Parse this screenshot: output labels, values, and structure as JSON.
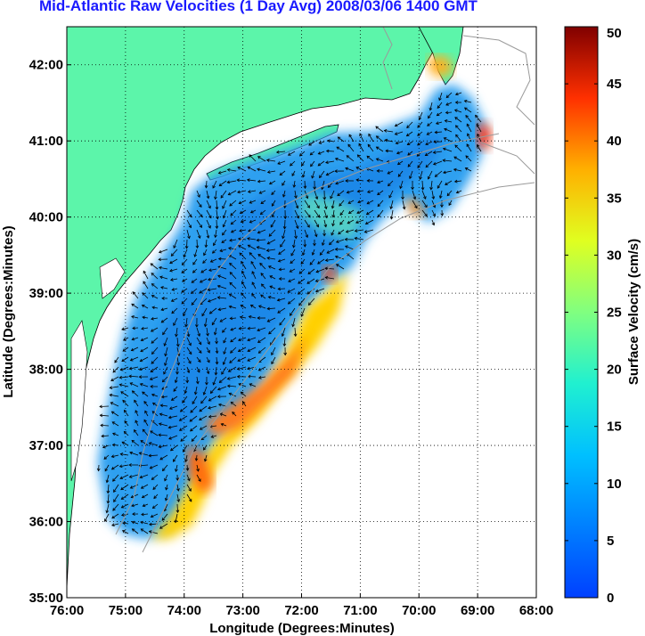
{
  "title": "Mid-Atlantic Raw Velocities (1 Day Avg) 2008/03/06 1400 GMT",
  "map": {
    "xlabel": "Longitude (Degrees:Minutes)",
    "ylabel": "Latitude (Degrees:Minutes)",
    "lon_range": [
      -76,
      -68
    ],
    "lat_range": [
      35,
      42.5
    ],
    "lon_ticks": [
      {
        "value": -76,
        "label": "76:00"
      },
      {
        "value": -75,
        "label": "75:00"
      },
      {
        "value": -74,
        "label": "74:00"
      },
      {
        "value": -73,
        "label": "73:00"
      },
      {
        "value": -72,
        "label": "72:00"
      },
      {
        "value": -71,
        "label": "71:00"
      },
      {
        "value": -70,
        "label": "70:00"
      },
      {
        "value": -69,
        "label": "69:00"
      },
      {
        "value": -68,
        "label": "68:00"
      }
    ],
    "lat_ticks": [
      {
        "value": 35,
        "label": "35:00"
      },
      {
        "value": 36,
        "label": "36:00"
      },
      {
        "value": 37,
        "label": "37:00"
      },
      {
        "value": 38,
        "label": "38:00"
      },
      {
        "value": 39,
        "label": "39:00"
      },
      {
        "value": 40,
        "label": "40:00"
      },
      {
        "value": 41,
        "label": "41:00"
      },
      {
        "value": 42,
        "label": "42:00"
      }
    ],
    "grid": "dotted",
    "land_color": "#5cf5aa",
    "bathymetry_color": "#9a9a9a"
  },
  "colorbar": {
    "label": "Surface Velocity (cm/s)",
    "range": [
      0,
      50
    ],
    "ticks": [
      {
        "value": 0,
        "label": "0"
      },
      {
        "value": 5,
        "label": "5"
      },
      {
        "value": 10,
        "label": "10"
      },
      {
        "value": 15,
        "label": "15"
      },
      {
        "value": 20,
        "label": "20"
      },
      {
        "value": 25,
        "label": "25"
      },
      {
        "value": 30,
        "label": "30"
      },
      {
        "value": 35,
        "label": "35"
      },
      {
        "value": 40,
        "label": "40"
      },
      {
        "value": 45,
        "label": "45"
      },
      {
        "value": 50,
        "label": "50"
      }
    ],
    "colormap": "jet"
  }
}
